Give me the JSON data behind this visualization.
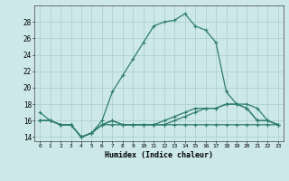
{
  "x": [
    0,
    1,
    2,
    3,
    4,
    5,
    6,
    7,
    8,
    9,
    10,
    11,
    12,
    13,
    14,
    15,
    16,
    17,
    18,
    19,
    20,
    21,
    22,
    23
  ],
  "line1": [
    17,
    16,
    15.5,
    15.5,
    14,
    14.5,
    16,
    19.5,
    21.5,
    23.5,
    25.5,
    27.5,
    28,
    28.2,
    29,
    27.5,
    27,
    25.5,
    19.5,
    18,
    18,
    17.5,
    16,
    15.5
  ],
  "line2": [
    16,
    16,
    15.5,
    15.5,
    14,
    14.5,
    15.5,
    16,
    15.5,
    15.5,
    15.5,
    15.5,
    15.5,
    16,
    16.5,
    17,
    17.5,
    17.5,
    18,
    18,
    17.5,
    16,
    16,
    15.5
  ],
  "line3": [
    16,
    16,
    15.5,
    15.5,
    14,
    14.5,
    15.5,
    16,
    15.5,
    15.5,
    15.5,
    15.5,
    16,
    16.5,
    17,
    17.5,
    17.5,
    17.5,
    18,
    18,
    17.5,
    16,
    16,
    15.5
  ],
  "line4": [
    16,
    16,
    15.5,
    15.5,
    14,
    14.5,
    15.5,
    15.5,
    15.5,
    15.5,
    15.5,
    15.5,
    15.5,
    15.5,
    15.5,
    15.5,
    15.5,
    15.5,
    15.5,
    15.5,
    15.5,
    15.5,
    15.5,
    15.5
  ],
  "line_color": "#2e7d6e",
  "bg_color": "#cce8e8",
  "grid_color": "#aacccc",
  "xlabel": "Humidex (Indice chaleur)",
  "yticks": [
    14,
    16,
    18,
    20,
    22,
    24,
    26,
    28
  ],
  "xticks": [
    0,
    1,
    2,
    3,
    4,
    5,
    6,
    7,
    8,
    9,
    10,
    11,
    12,
    13,
    14,
    15,
    16,
    17,
    18,
    19,
    20,
    21,
    22,
    23
  ],
  "ylim": [
    13.5,
    30.0
  ],
  "xlim": [
    -0.5,
    23.5
  ]
}
